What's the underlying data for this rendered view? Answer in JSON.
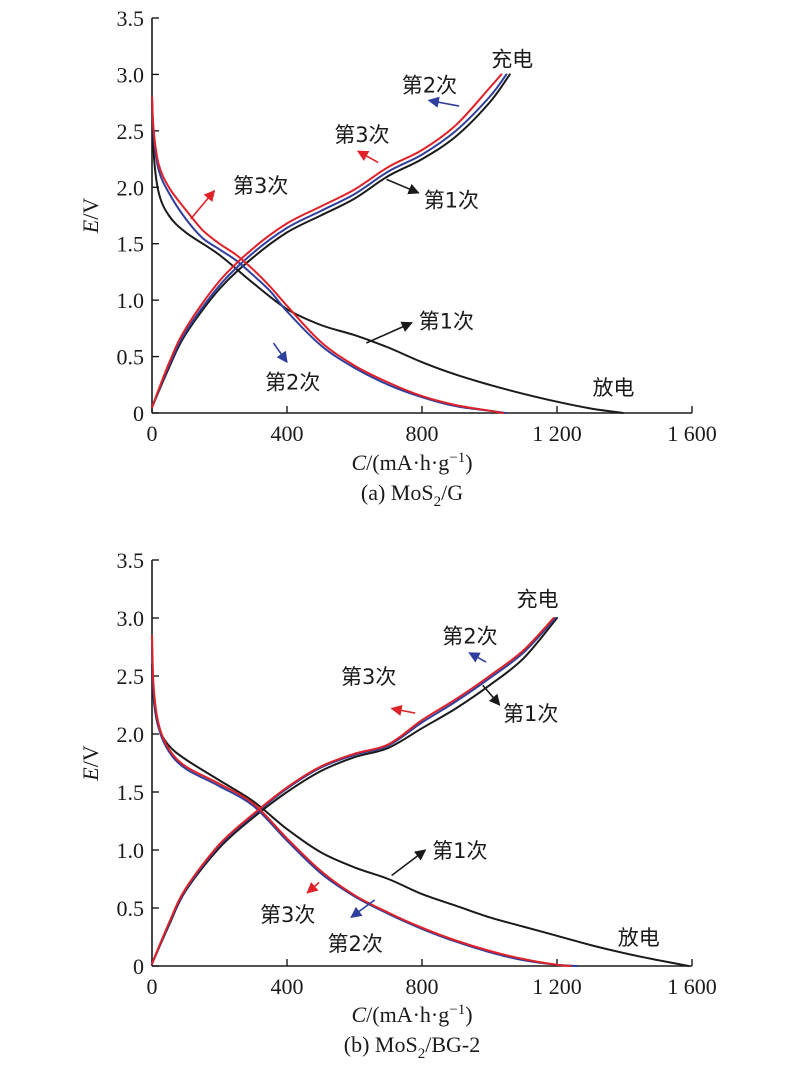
{
  "colors": {
    "black": "#1a1a1a",
    "blue": "#2e3f9e",
    "red": "#e02127"
  },
  "chart_data": [
    {
      "type": "line",
      "caption_prefix": "(a) MoS",
      "caption_sub": "2",
      "caption_suffix": "/G",
      "xlabel_var": "C",
      "xlabel_unit": "/(mA·h·g",
      "xlabel_exp": "−1",
      "xlabel_close": ")",
      "ylabel_var": "E",
      "ylabel_unit": "/V",
      "xlim": [
        0,
        1600
      ],
      "ylim": [
        0,
        3.5
      ],
      "x_ticks": [
        0,
        400,
        800,
        1200,
        1600
      ],
      "x_tick_labels": [
        "0",
        "400",
        "800",
        "1 200",
        "1 600"
      ],
      "y_ticks": [
        0,
        0.5,
        1.0,
        1.5,
        2.0,
        2.5,
        3.0,
        3.5
      ],
      "y_tick_labels": [
        "0",
        "0.5",
        "1.0",
        "1.5",
        "2.0",
        "2.5",
        "3.0",
        "3.5"
      ],
      "grid": false,
      "series": [
        {
          "cycle": 1,
          "kind": "discharge",
          "color": "black",
          "x": [
            0,
            5,
            20,
            50,
            100,
            200,
            300,
            400,
            500,
            600,
            700,
            800,
            900,
            1000,
            1100,
            1200,
            1300,
            1395
          ],
          "y": [
            2.8,
            2.3,
            1.95,
            1.75,
            1.6,
            1.4,
            1.15,
            0.92,
            0.78,
            0.69,
            0.58,
            0.45,
            0.34,
            0.25,
            0.17,
            0.1,
            0.04,
            0.0
          ]
        },
        {
          "cycle": 2,
          "kind": "discharge",
          "color": "blue",
          "x": [
            0,
            5,
            20,
            50,
            100,
            150,
            200,
            250,
            300,
            350,
            400,
            500,
            600,
            700,
            800,
            900,
            1000,
            1050
          ],
          "y": [
            2.8,
            2.45,
            2.15,
            1.95,
            1.72,
            1.55,
            1.45,
            1.35,
            1.22,
            1.08,
            0.9,
            0.6,
            0.4,
            0.25,
            0.14,
            0.06,
            0.02,
            0.0
          ]
        },
        {
          "cycle": 3,
          "kind": "discharge",
          "color": "red",
          "x": [
            0,
            5,
            20,
            50,
            100,
            150,
            200,
            250,
            300,
            350,
            400,
            500,
            600,
            700,
            800,
            900,
            1000,
            1040
          ],
          "y": [
            2.8,
            2.5,
            2.2,
            2.0,
            1.8,
            1.62,
            1.5,
            1.4,
            1.27,
            1.12,
            0.95,
            0.63,
            0.42,
            0.27,
            0.15,
            0.07,
            0.02,
            0.0
          ]
        },
        {
          "cycle": 1,
          "kind": "charge",
          "color": "black",
          "x": [
            0,
            50,
            100,
            200,
            300,
            400,
            500,
            600,
            700,
            800,
            900,
            1000,
            1060
          ],
          "y": [
            0.05,
            0.4,
            0.7,
            1.1,
            1.38,
            1.6,
            1.75,
            1.9,
            2.1,
            2.25,
            2.45,
            2.75,
            3.0
          ]
        },
        {
          "cycle": 2,
          "kind": "charge",
          "color": "blue",
          "x": [
            0,
            50,
            100,
            200,
            300,
            400,
            500,
            600,
            700,
            800,
            900,
            1000,
            1050
          ],
          "y": [
            0.05,
            0.42,
            0.72,
            1.13,
            1.42,
            1.64,
            1.79,
            1.94,
            2.14,
            2.29,
            2.5,
            2.8,
            3.0
          ]
        },
        {
          "cycle": 3,
          "kind": "charge",
          "color": "red",
          "x": [
            0,
            50,
            100,
            200,
            300,
            400,
            500,
            600,
            700,
            800,
            900,
            1000,
            1035
          ],
          "y": [
            0.05,
            0.44,
            0.75,
            1.17,
            1.46,
            1.68,
            1.83,
            1.98,
            2.18,
            2.33,
            2.55,
            2.88,
            3.0
          ]
        }
      ],
      "annotations": [
        {
          "text": "充电",
          "x": 1005,
          "y": 3.07,
          "arrow": false
        },
        {
          "text": "放电",
          "x": 1305,
          "y": 0.16,
          "arrow": false
        },
        {
          "text": "第2次",
          "x": 740,
          "y": 2.84,
          "arrow": true,
          "color": "blue",
          "from": [
            910,
            2.72
          ],
          "to": [
            820,
            2.77
          ]
        },
        {
          "text": "第3次",
          "x": 540,
          "y": 2.4,
          "arrow": true,
          "color": "red",
          "from": [
            670,
            2.22
          ],
          "to": [
            610,
            2.32
          ]
        },
        {
          "text": "第1次",
          "x": 805,
          "y": 1.82,
          "arrow": true,
          "color": "black",
          "from": [
            695,
            2.07
          ],
          "to": [
            790,
            1.95
          ]
        },
        {
          "text": "第3次",
          "x": 240,
          "y": 1.95,
          "arrow": true,
          "color": "red",
          "from": [
            115,
            1.72
          ],
          "to": [
            185,
            1.97
          ]
        },
        {
          "text": "第1次",
          "x": 790,
          "y": 0.75,
          "arrow": true,
          "color": "black",
          "from": [
            635,
            0.62
          ],
          "to": [
            770,
            0.8
          ]
        },
        {
          "text": "第2次",
          "x": 335,
          "y": 0.21,
          "arrow": true,
          "color": "blue",
          "from": [
            360,
            0.62
          ],
          "to": [
            400,
            0.45
          ]
        }
      ]
    },
    {
      "type": "line",
      "caption_prefix": "(b) MoS",
      "caption_sub": "2",
      "caption_suffix": "/BG-2",
      "xlabel_var": "C",
      "xlabel_unit": "/(mA·h·g",
      "xlabel_exp": "−1",
      "xlabel_close": ")",
      "ylabel_var": "E",
      "ylabel_unit": "/V",
      "xlim": [
        0,
        1600
      ],
      "ylim": [
        0,
        3.5
      ],
      "x_ticks": [
        0,
        400,
        800,
        1200,
        1600
      ],
      "x_tick_labels": [
        "0",
        "400",
        "800",
        "1 200",
        "1 600"
      ],
      "y_ticks": [
        0,
        0.5,
        1.0,
        1.5,
        2.0,
        2.5,
        3.0,
        3.5
      ],
      "y_tick_labels": [
        "0",
        "0.5",
        "1.0",
        "1.5",
        "2.0",
        "2.5",
        "3.0",
        "3.5"
      ],
      "grid": false,
      "series": [
        {
          "cycle": 1,
          "kind": "discharge",
          "color": "black",
          "x": [
            0,
            5,
            20,
            50,
            100,
            200,
            300,
            400,
            500,
            600,
            700,
            800,
            900,
            1000,
            1100,
            1200,
            1300,
            1400,
            1500,
            1590
          ],
          "y": [
            2.6,
            2.3,
            2.05,
            1.9,
            1.78,
            1.6,
            1.42,
            1.18,
            0.98,
            0.85,
            0.75,
            0.62,
            0.52,
            0.42,
            0.34,
            0.26,
            0.18,
            0.11,
            0.05,
            0.0
          ]
        },
        {
          "cycle": 2,
          "kind": "discharge",
          "color": "blue",
          "x": [
            0,
            5,
            20,
            50,
            100,
            200,
            300,
            400,
            500,
            600,
            700,
            800,
            900,
            1000,
            1100,
            1200,
            1260
          ],
          "y": [
            2.75,
            2.35,
            2.05,
            1.85,
            1.7,
            1.55,
            1.38,
            1.08,
            0.8,
            0.6,
            0.45,
            0.32,
            0.21,
            0.12,
            0.05,
            0.01,
            0.0
          ]
        },
        {
          "cycle": 3,
          "kind": "discharge",
          "color": "red",
          "x": [
            0,
            5,
            20,
            50,
            100,
            200,
            300,
            400,
            500,
            600,
            700,
            800,
            900,
            1000,
            1100,
            1200,
            1240
          ],
          "y": [
            2.85,
            2.4,
            2.08,
            1.87,
            1.72,
            1.57,
            1.4,
            1.1,
            0.82,
            0.61,
            0.46,
            0.33,
            0.22,
            0.13,
            0.06,
            0.01,
            0.0
          ]
        },
        {
          "cycle": 1,
          "kind": "charge",
          "color": "black",
          "x": [
            0,
            50,
            100,
            200,
            300,
            400,
            500,
            600,
            700,
            800,
            900,
            1000,
            1100,
            1200
          ],
          "y": [
            0.02,
            0.35,
            0.65,
            1.02,
            1.28,
            1.5,
            1.68,
            1.8,
            1.88,
            2.05,
            2.22,
            2.42,
            2.65,
            3.0
          ]
        },
        {
          "cycle": 2,
          "kind": "charge",
          "color": "blue",
          "x": [
            0,
            50,
            100,
            200,
            300,
            400,
            500,
            600,
            700,
            800,
            900,
            1000,
            1100,
            1195
          ],
          "y": [
            0.02,
            0.36,
            0.66,
            1.04,
            1.3,
            1.53,
            1.71,
            1.82,
            1.9,
            2.1,
            2.28,
            2.48,
            2.7,
            3.0
          ]
        },
        {
          "cycle": 3,
          "kind": "charge",
          "color": "red",
          "x": [
            0,
            50,
            100,
            200,
            300,
            400,
            500,
            600,
            700,
            800,
            900,
            1000,
            1100,
            1190
          ],
          "y": [
            0.02,
            0.37,
            0.67,
            1.05,
            1.31,
            1.54,
            1.72,
            1.83,
            1.91,
            2.12,
            2.3,
            2.5,
            2.72,
            3.0
          ]
        }
      ],
      "annotations": [
        {
          "text": "充电",
          "x": 1080,
          "y": 3.1,
          "arrow": false
        },
        {
          "text": "放电",
          "x": 1380,
          "y": 0.18,
          "arrow": false
        },
        {
          "text": "第2次",
          "x": 860,
          "y": 2.78,
          "arrow": true,
          "color": "blue",
          "from": [
            990,
            2.62
          ],
          "to": [
            940,
            2.7
          ]
        },
        {
          "text": "第3次",
          "x": 560,
          "y": 2.43,
          "arrow": true,
          "color": "red",
          "from": [
            780,
            2.18
          ],
          "to": [
            710,
            2.22
          ]
        },
        {
          "text": "第1次",
          "x": 1040,
          "y": 2.11,
          "arrow": true,
          "color": "black",
          "from": [
            980,
            2.42
          ],
          "to": [
            1030,
            2.25
          ]
        },
        {
          "text": "第1次",
          "x": 830,
          "y": 0.93,
          "arrow": true,
          "color": "black",
          "from": [
            710,
            0.78
          ],
          "to": [
            810,
            1.0
          ]
        },
        {
          "text": "第3次",
          "x": 320,
          "y": 0.38,
          "arrow": true,
          "color": "red",
          "from": [
            495,
            0.72
          ],
          "to": [
            460,
            0.63
          ]
        },
        {
          "text": "第2次",
          "x": 520,
          "y": 0.13,
          "arrow": true,
          "color": "blue",
          "from": [
            660,
            0.57
          ],
          "to": [
            590,
            0.42
          ]
        }
      ]
    }
  ]
}
